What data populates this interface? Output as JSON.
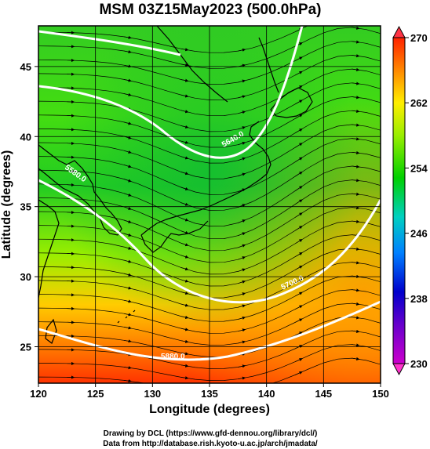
{
  "title": "MSM 03Z15May2023 (500.0hPa)",
  "x_axis": {
    "label": "Longitude (degrees)",
    "ticks": [
      "120",
      "125",
      "130",
      "135",
      "140",
      "145",
      "150"
    ]
  },
  "y_axis": {
    "label": "Latitude  (degrees)",
    "ticks": [
      "25",
      "30",
      "35",
      "40",
      "45"
    ]
  },
  "colorbar": {
    "ticks": [
      "230",
      "238",
      "246",
      "254",
      "262",
      "270"
    ],
    "colors": [
      "#cc00cc",
      "#0000cc",
      "#00a0ff",
      "#00e0a0",
      "#00d000",
      "#ccff00",
      "#ffcc00",
      "#ff6600",
      "#ff0000"
    ]
  },
  "contour_labels": [
    "5880.0",
    "5700.0",
    "5640.0",
    "5580.0"
  ],
  "credits": {
    "line1": "Drawing by DCL (https://www.gfd-dennou.org/library/dcl/)",
    "line2": "Data from http://database.rish.kyoto-u.ac.jp/arch/jmadata/"
  }
}
